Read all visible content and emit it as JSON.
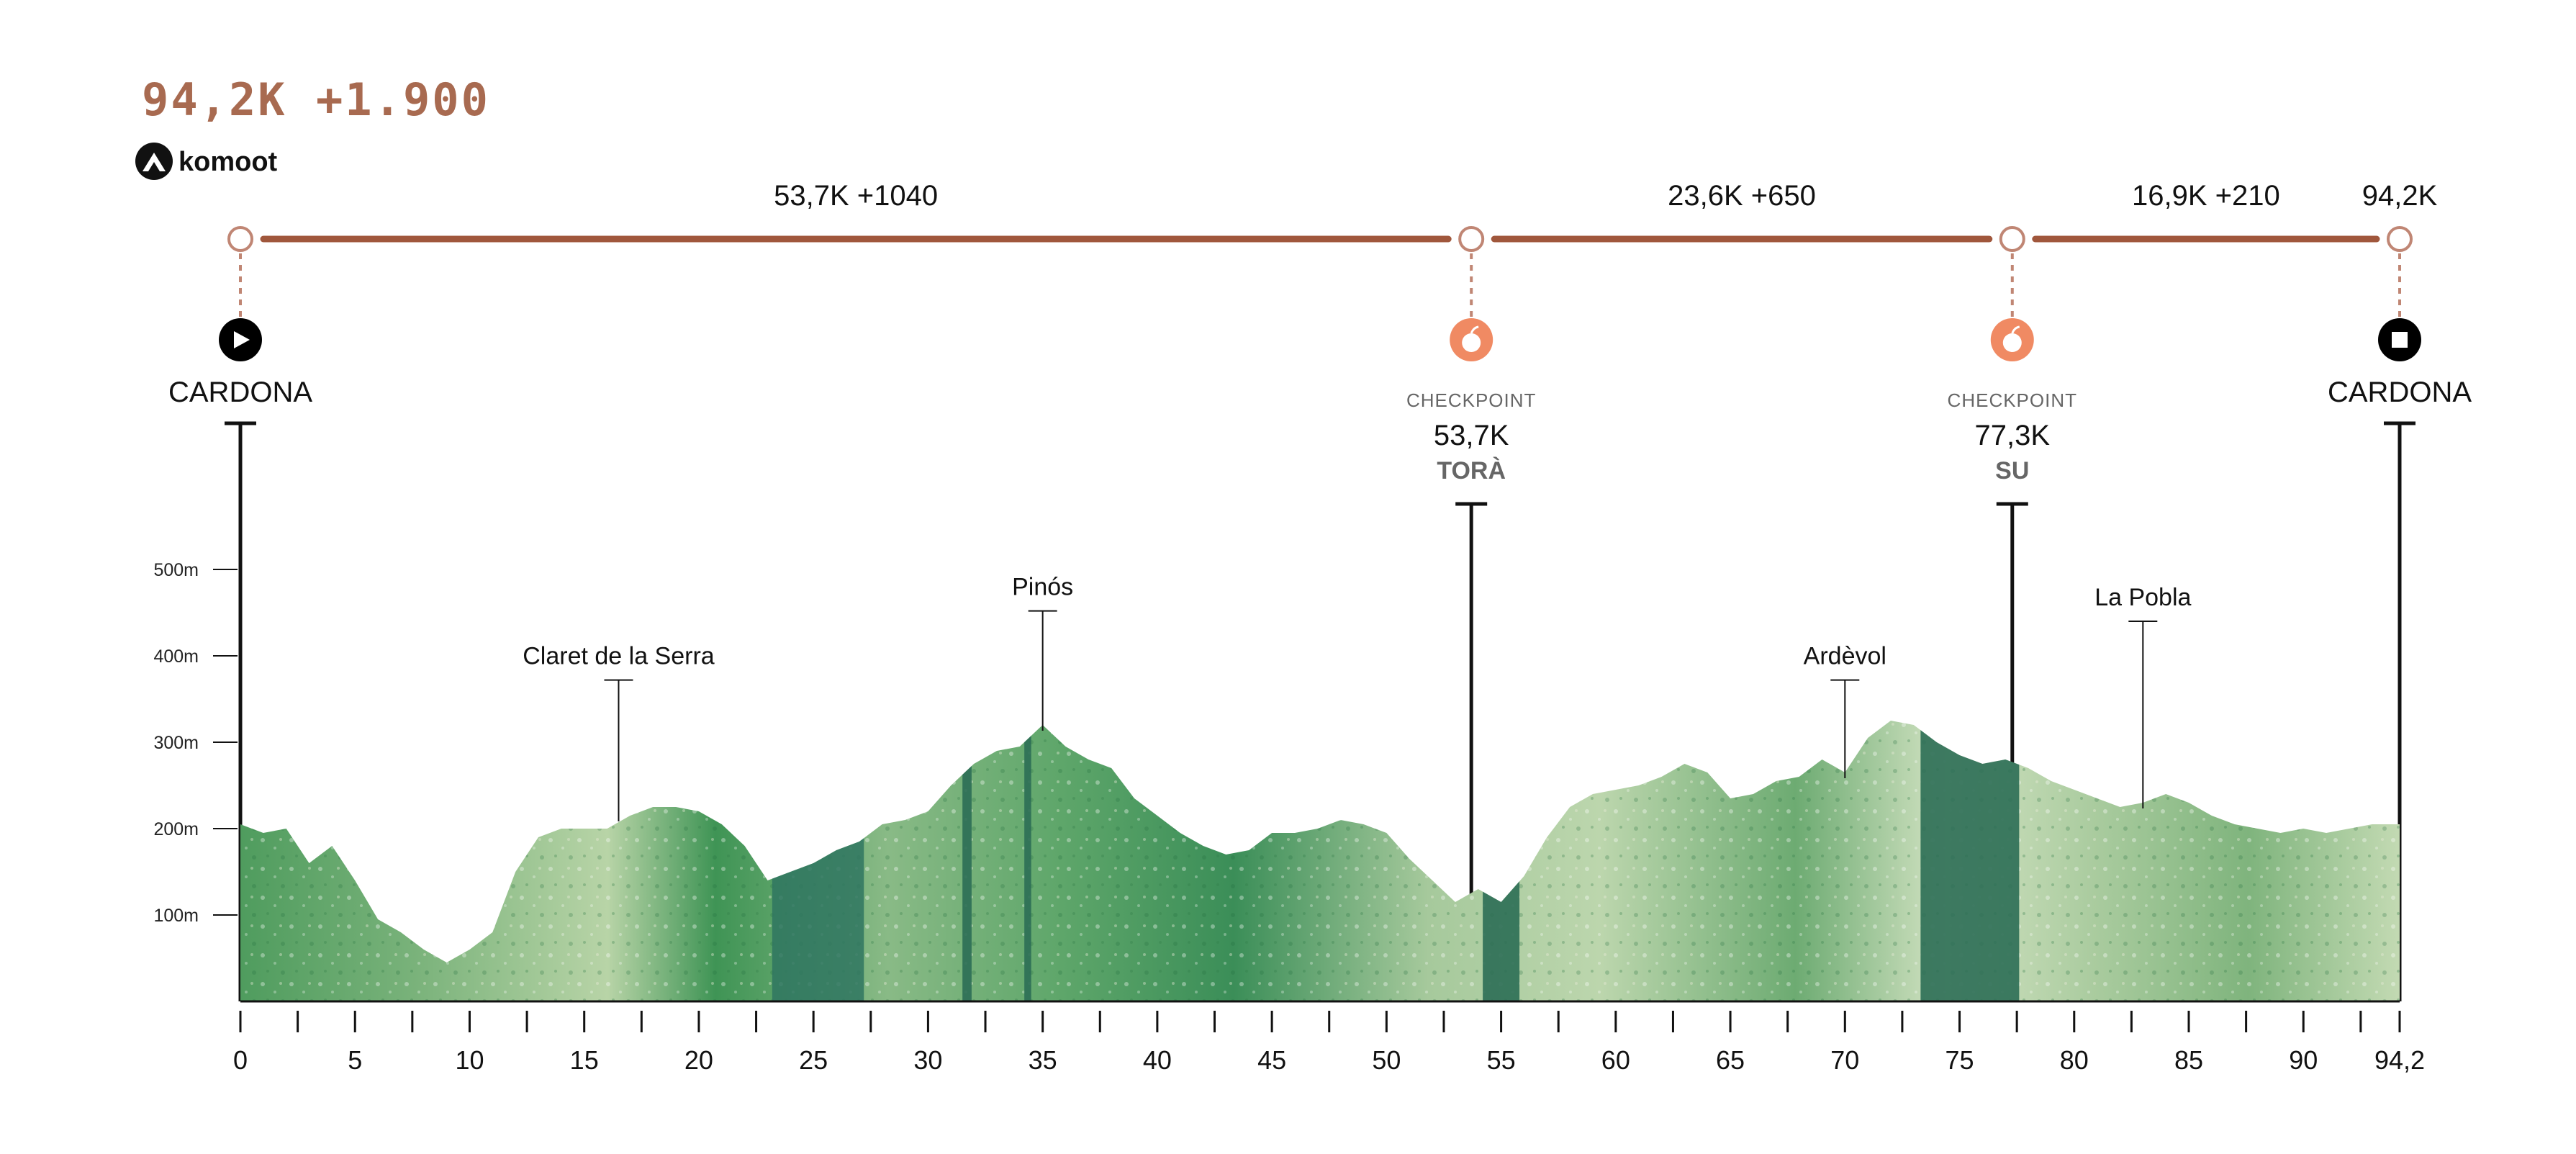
{
  "header": {
    "summary": "94,2K +1.900",
    "brand": "komoot"
  },
  "segments": [
    {
      "label": "53,7K +1040",
      "from": 0,
      "to": 53.7
    },
    {
      "label": "23,6K +650",
      "from": 53.7,
      "to": 77.3
    },
    {
      "label": "16,9K +210",
      "from": 77.3,
      "to": 94.2
    }
  ],
  "finish_distance_label": "94,2K",
  "markers": [
    {
      "type": "start",
      "icon": "play-icon",
      "km": 0,
      "name": "CARDONA"
    },
    {
      "type": "checkpoint",
      "icon": "apple-icon",
      "km": 53.7,
      "caption": "CHECKPOINT",
      "km_label": "53,7K",
      "name": "TORÀ"
    },
    {
      "type": "checkpoint",
      "icon": "apple-icon",
      "km": 77.3,
      "caption": "CHECKPOINT",
      "km_label": "77,3K",
      "name": "SU"
    },
    {
      "type": "finish",
      "icon": "stop-icon",
      "km": 94.2,
      "name": "CARDONA"
    }
  ],
  "colors": {
    "title": "#a86a50",
    "route_line": "#a0573c",
    "checkpoint": "#f08a63",
    "terrain_light": "#cfe2c0",
    "terrain_mid": "#6fad6f",
    "terrain_dark": "#3b8a55",
    "terrain_deep": "#2c6e55"
  },
  "chart_data": {
    "type": "area",
    "xlabel": "",
    "ylabel": "",
    "xlim": [
      0,
      94.2
    ],
    "ylim": [
      0,
      600
    ],
    "x_ticks": [
      0,
      5,
      10,
      15,
      20,
      25,
      30,
      35,
      40,
      45,
      50,
      55,
      60,
      65,
      70,
      75,
      80,
      85,
      90,
      94.2
    ],
    "x_tick_labels": [
      "0",
      "5",
      "10",
      "15",
      "20",
      "25",
      "30",
      "35",
      "40",
      "45",
      "50",
      "55",
      "60",
      "65",
      "70",
      "75",
      "80",
      "85",
      "90",
      "94,2"
    ],
    "y_ticks": [
      100,
      200,
      300,
      400,
      500
    ],
    "y_tick_labels": [
      "100m",
      "200m",
      "300m",
      "400m",
      "500m"
    ],
    "grid": false,
    "series": [
      {
        "x": [
          0,
          1,
          2,
          3,
          4,
          5,
          6,
          7,
          8,
          9,
          10,
          11,
          12,
          13,
          14,
          15,
          16,
          17,
          18,
          19,
          20,
          21,
          22,
          23,
          24,
          25,
          26,
          27,
          28,
          29,
          30,
          31,
          32,
          33,
          34,
          35,
          36,
          37,
          38,
          39,
          40,
          41,
          42,
          43,
          44,
          45,
          46,
          47,
          48,
          49,
          50,
          51,
          52,
          53,
          54,
          55,
          56,
          57,
          58,
          59,
          60,
          61,
          62,
          63,
          64,
          65,
          66,
          67,
          68,
          69,
          70,
          71,
          72,
          73,
          74,
          75,
          76,
          77,
          78,
          79,
          80,
          81,
          82,
          83,
          84,
          85,
          86,
          87,
          88,
          89,
          90,
          91,
          92,
          93,
          94.2
        ],
        "y": [
          205,
          195,
          200,
          160,
          180,
          140,
          95,
          80,
          60,
          45,
          60,
          80,
          150,
          190,
          200,
          200,
          200,
          215,
          225,
          225,
          220,
          205,
          180,
          140,
          150,
          160,
          175,
          185,
          205,
          210,
          220,
          250,
          275,
          290,
          295,
          320,
          295,
          280,
          270,
          235,
          215,
          195,
          180,
          170,
          175,
          195,
          195,
          200,
          210,
          205,
          195,
          165,
          140,
          115,
          130,
          115,
          145,
          190,
          225,
          240,
          245,
          250,
          260,
          275,
          265,
          235,
          240,
          255,
          260,
          280,
          265,
          305,
          325,
          320,
          300,
          285,
          275,
          280,
          270,
          255,
          245,
          235,
          225,
          230,
          240,
          230,
          215,
          205,
          200,
          195,
          200,
          195,
          200,
          205,
          205
        ]
      }
    ],
    "annotations": [
      {
        "text": "Claret de la Serra",
        "x": 16.5,
        "y": 372
      },
      {
        "text": "Pinós",
        "x": 35,
        "y": 452
      },
      {
        "text": "Ardèvol",
        "x": 70,
        "y": 372
      },
      {
        "text": "La Pobla",
        "x": 83,
        "y": 440
      }
    ],
    "highlight_bands": [
      [
        23.2,
        27.2
      ],
      [
        31.5,
        31.9
      ],
      [
        34.2,
        34.5
      ],
      [
        54.2,
        55.8
      ],
      [
        73.3,
        77.6
      ]
    ]
  }
}
